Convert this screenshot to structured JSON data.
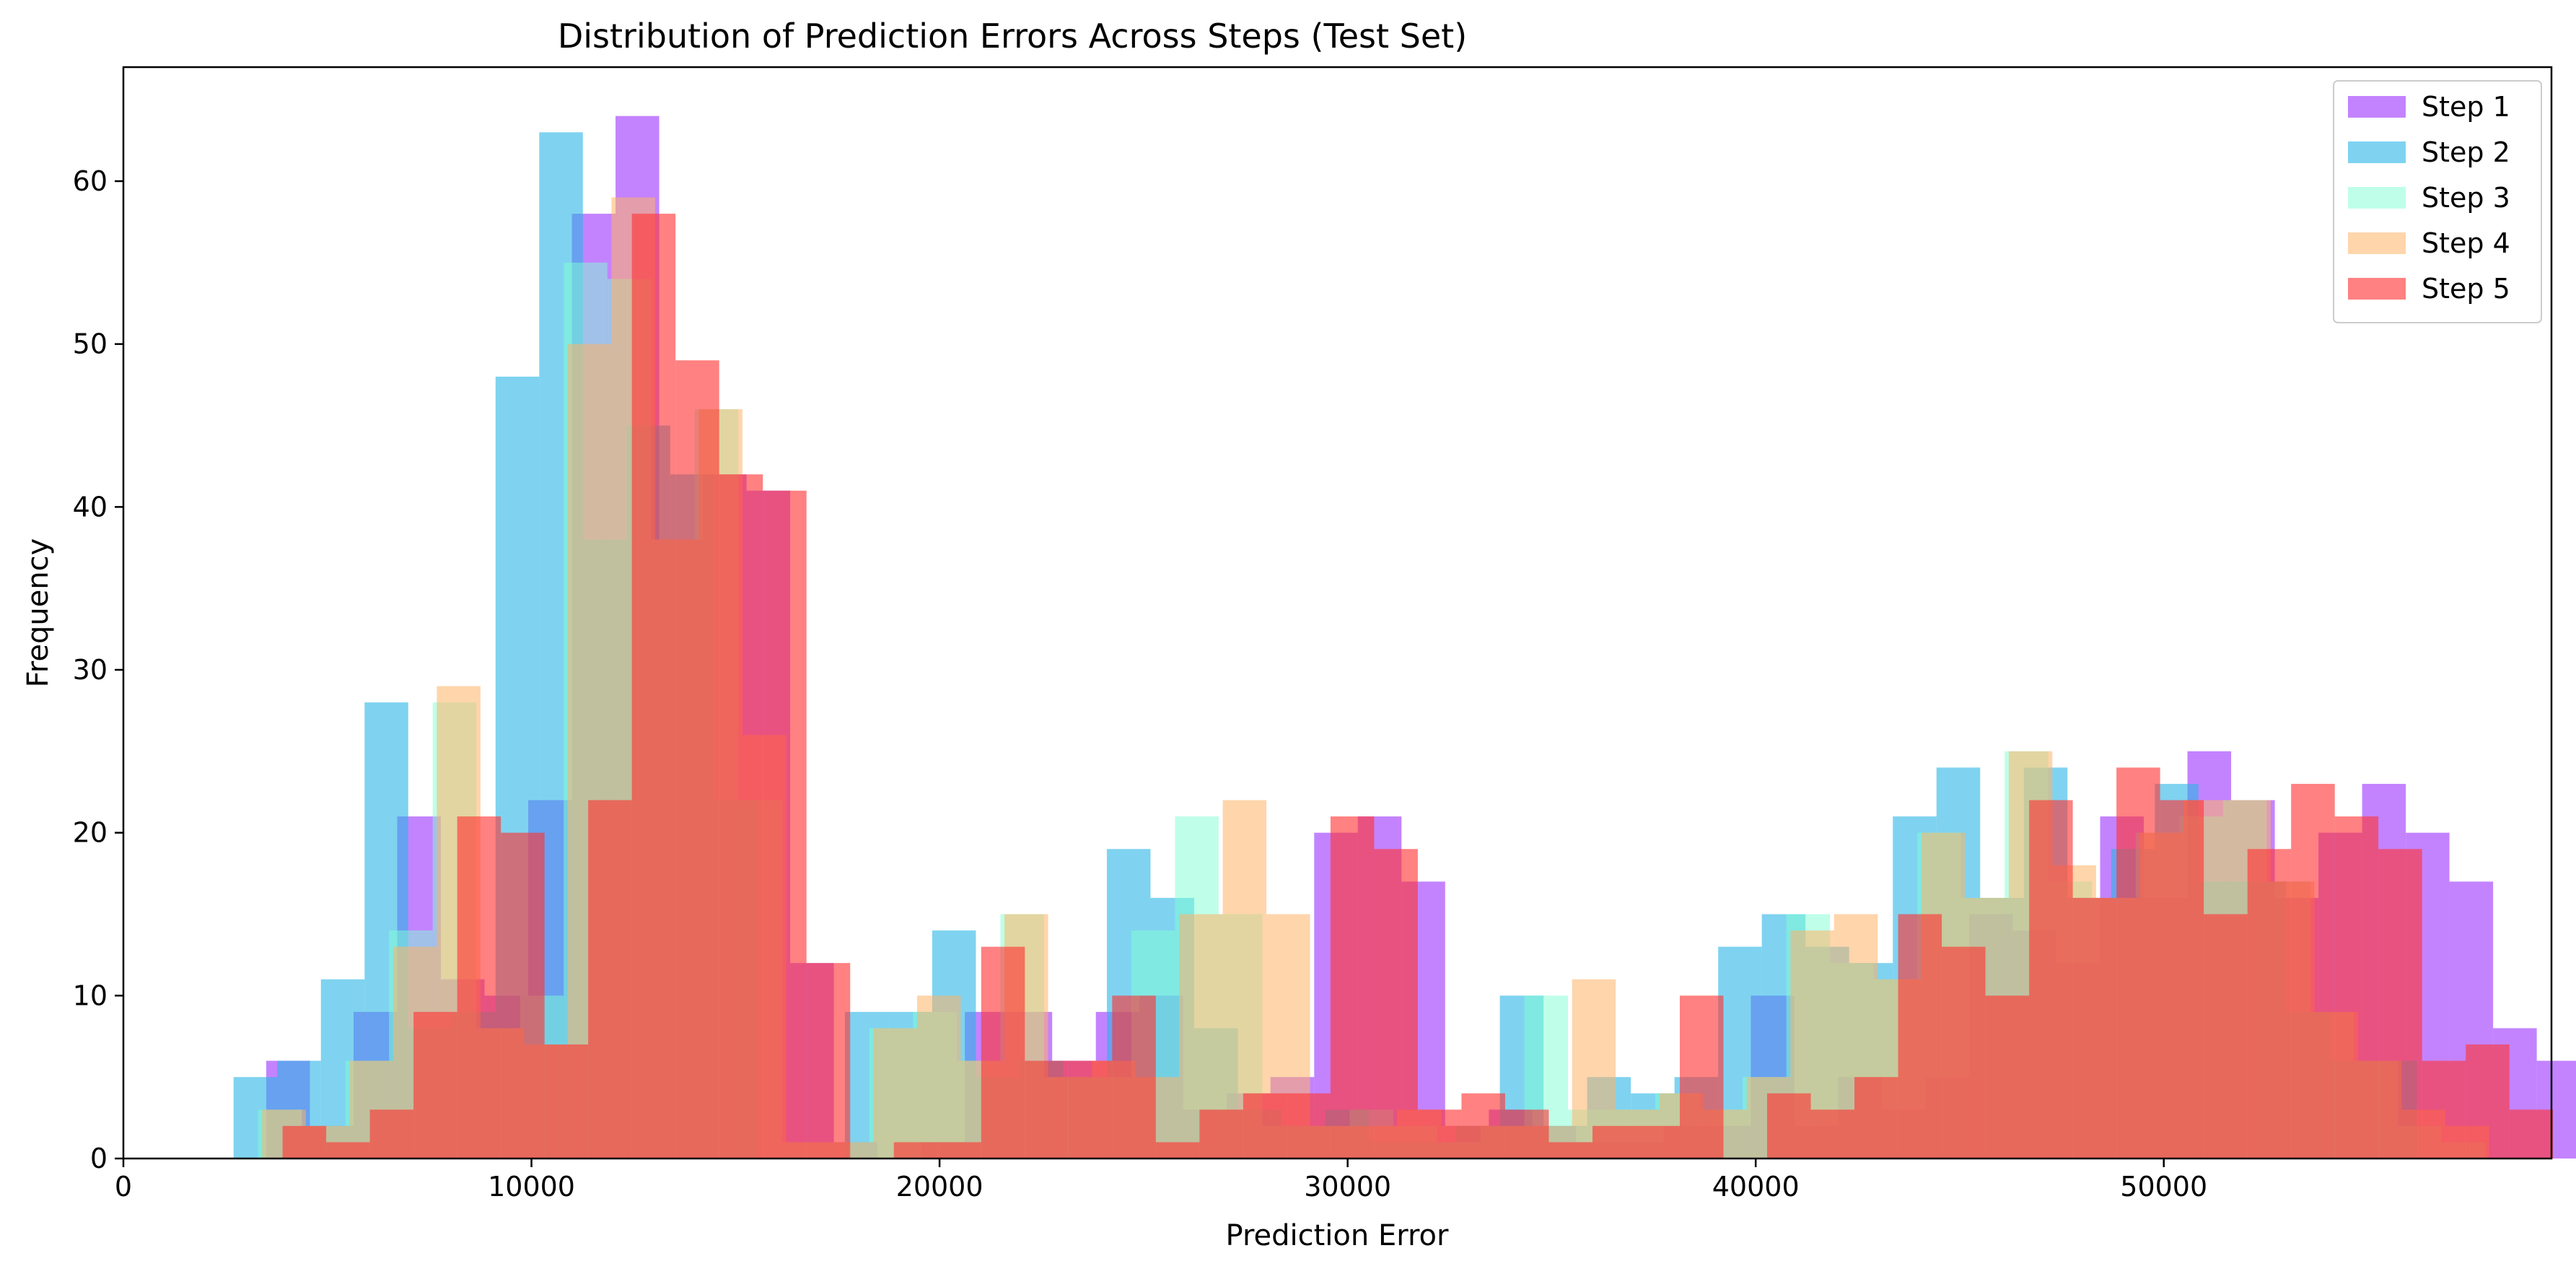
{
  "chart_data": {
    "type": "bar",
    "title": "Distribution of Prediction Errors Across Steps (Test Set)",
    "xlabel": "Prediction Error",
    "ylabel": "Frequency",
    "xlim": [
      0,
      59500
    ],
    "ylim": [
      0,
      67
    ],
    "xticks": [
      "0",
      "10000",
      "20000",
      "30000",
      "40000",
      "50000"
    ],
    "xtick_values": [
      0,
      10000,
      20000,
      30000,
      40000,
      50000
    ],
    "yticks": [
      "0",
      "10",
      "20",
      "30",
      "40",
      "50",
      "60"
    ],
    "ytick_values": [
      0,
      10,
      20,
      30,
      40,
      50,
      60
    ],
    "grid": false,
    "legend_position": "top-right",
    "series": [
      {
        "name": "Step 1",
        "color": "#9b30ff",
        "opacity": 0.6,
        "bin_start": 3500,
        "bin_width": 1070,
        "values": [
          6,
          2,
          9,
          21,
          11,
          10,
          22,
          58,
          64,
          38,
          42,
          41,
          12,
          1,
          0,
          1,
          9,
          9,
          6,
          9,
          10,
          3,
          4,
          5,
          20,
          21,
          17,
          2,
          3,
          2,
          1,
          1,
          2,
          2,
          10,
          2,
          5,
          3,
          5,
          15,
          14,
          12,
          21,
          16,
          25,
          22,
          16,
          20,
          23,
          20,
          17,
          8,
          6,
          2,
          2
        ]
      },
      {
        "name": "Step 2",
        "color": "#29b6e6",
        "opacity": 0.6,
        "bin_start": 2700,
        "bin_width": 1070,
        "values": [
          5,
          6,
          11,
          28,
          8,
          9,
          48,
          63,
          38,
          45,
          42,
          22,
          0,
          0,
          9,
          9,
          14,
          5,
          6,
          5,
          19,
          16,
          8,
          3,
          2,
          3,
          1,
          1,
          2,
          10,
          2,
          5,
          4,
          5,
          13,
          15,
          13,
          12,
          21,
          24,
          16,
          24,
          16,
          19,
          23,
          17,
          17,
          9,
          6,
          6,
          0,
          0,
          0
        ]
      },
      {
        "name": "Step 3",
        "color": "#7fffd4",
        "opacity": 0.5,
        "bin_start": 3300,
        "bin_width": 1070,
        "values": [
          3,
          2,
          6,
          14,
          28,
          8,
          10,
          55,
          54,
          38,
          46,
          22,
          1,
          1,
          8,
          9,
          6,
          15,
          5,
          5,
          14,
          21,
          15,
          2,
          2,
          3,
          2,
          1,
          2,
          10,
          3,
          3,
          4,
          3,
          5,
          15,
          12,
          11,
          20,
          16,
          25,
          17,
          16,
          20,
          21,
          22,
          17,
          9,
          6,
          2,
          1
        ]
      },
      {
        "name": "Step 4",
        "color": "#ffb366",
        "opacity": 0.55,
        "bin_start": 3400,
        "bin_width": 1070,
        "values": [
          3,
          2,
          6,
          13,
          29,
          8,
          7,
          50,
          59,
          38,
          46,
          26,
          1,
          1,
          8,
          10,
          6,
          15,
          5,
          6,
          5,
          15,
          22,
          15,
          2,
          2,
          3,
          2,
          2,
          2,
          11,
          3,
          4,
          3,
          5,
          14,
          15,
          11,
          20,
          16,
          25,
          18,
          16,
          20,
          22,
          22,
          17,
          9,
          6,
          3,
          2
        ]
      },
      {
        "name": "Step 5",
        "color": "#ff3333",
        "opacity": 0.62,
        "bin_start": 3900,
        "bin_width": 1070,
        "values": [
          2,
          1,
          3,
          9,
          21,
          20,
          7,
          22,
          58,
          49,
          42,
          41,
          12,
          0,
          1,
          1,
          13,
          6,
          6,
          10,
          1,
          3,
          4,
          4,
          21,
          19,
          3,
          4,
          3,
          1,
          2,
          2,
          10,
          0,
          4,
          3,
          5,
          15,
          13,
          10,
          22,
          16,
          24,
          22,
          15,
          19,
          23,
          21,
          19,
          6,
          7,
          3
        ]
      }
    ]
  }
}
